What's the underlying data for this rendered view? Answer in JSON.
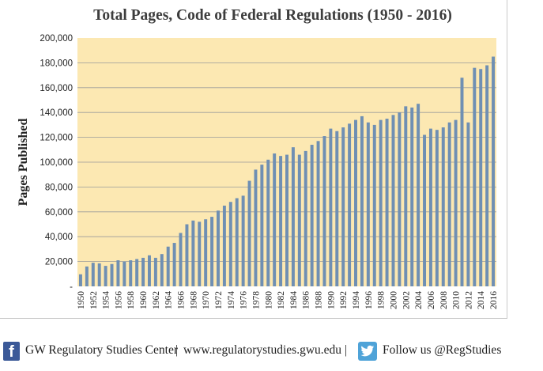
{
  "colors": {
    "plot_bg": "#fce8b2",
    "bar": "#6f8fb3",
    "title": "#3d3d3d",
    "grid": "#9a9a9a",
    "facebook": "#3b5998",
    "twitter": "#4fa3d8"
  },
  "chart_data": {
    "type": "bar",
    "title": "Total Pages, Code of Federal Regulations  (1950 - 2016)",
    "xlabel": "",
    "ylabel": "Pages Published",
    "ylim": [
      0,
      200000
    ],
    "grid": true,
    "y_ticks": [
      {
        "value": 0,
        "label": "-"
      },
      {
        "value": 20000,
        "label": "20,000"
      },
      {
        "value": 40000,
        "label": "40,000"
      },
      {
        "value": 60000,
        "label": "60,000"
      },
      {
        "value": 80000,
        "label": "80,000"
      },
      {
        "value": 100000,
        "label": "100,000"
      },
      {
        "value": 120000,
        "label": "120,000"
      },
      {
        "value": 140000,
        "label": "140,000"
      },
      {
        "value": 160000,
        "label": "160,000"
      },
      {
        "value": 180000,
        "label": "180,000"
      },
      {
        "value": 200000,
        "label": "200,000"
      }
    ],
    "categories": [
      "1950",
      "1951",
      "1952",
      "1953",
      "1954",
      "1955",
      "1956",
      "1957",
      "1958",
      "1959",
      "1960",
      "1961",
      "1962",
      "1963",
      "1964",
      "1965",
      "1966",
      "1967",
      "1968",
      "1969",
      "1970",
      "1971",
      "1972",
      "1973",
      "1974",
      "1975",
      "1976",
      "1977",
      "1978",
      "1979",
      "1980",
      "1981",
      "1982",
      "1983",
      "1984",
      "1985",
      "1986",
      "1987",
      "1988",
      "1989",
      "1990",
      "1991",
      "1992",
      "1993",
      "1994",
      "1995",
      "1996",
      "1997",
      "1998",
      "1999",
      "2000",
      "2001",
      "2002",
      "2003",
      "2004",
      "2005",
      "2006",
      "2007",
      "2008",
      "2009",
      "2010",
      "2011",
      "2012",
      "2013",
      "2014",
      "2015",
      "2016"
    ],
    "values": [
      9700,
      16000,
      19000,
      18500,
      16500,
      18000,
      21000,
      20000,
      21000,
      22000,
      23000,
      25000,
      23000,
      26000,
      32000,
      35000,
      43000,
      50000,
      53000,
      52000,
      54000,
      56000,
      61000,
      65000,
      68000,
      71000,
      73000,
      85000,
      94000,
      98000,
      102000,
      107000,
      105000,
      106000,
      112000,
      106000,
      109000,
      114000,
      117000,
      121000,
      127000,
      125000,
      128000,
      131000,
      134000,
      137000,
      132000,
      130000,
      134000,
      135000,
      138000,
      140000,
      145000,
      144000,
      147000,
      122000,
      127000,
      126000,
      128000,
      132000,
      134000,
      168000,
      132000,
      176000,
      175000,
      178000,
      185000
    ],
    "tick_labels": [
      "1950",
      "1952",
      "1954",
      "1956",
      "1958",
      "1960",
      "1962",
      "1964",
      "1966",
      "1968",
      "1970",
      "1972",
      "1974",
      "1976",
      "1978",
      "1980",
      "1982",
      "1984",
      "1986",
      "1988",
      "1990",
      "1992",
      "1994",
      "1996",
      "1998",
      "2000",
      "2002",
      "2004",
      "2006",
      "2008",
      "2010",
      "2012",
      "2014",
      "2016"
    ]
  },
  "footer": {
    "facebook_icon": "facebook-icon",
    "twitter_icon": "twitter-icon",
    "center_name": "GW Regulatory Studies Center",
    "divider1": "|",
    "website": "www.regulatorystudies.gwu.edu",
    "divider2": "|",
    "follow_text": "Follow us @RegStudies"
  }
}
